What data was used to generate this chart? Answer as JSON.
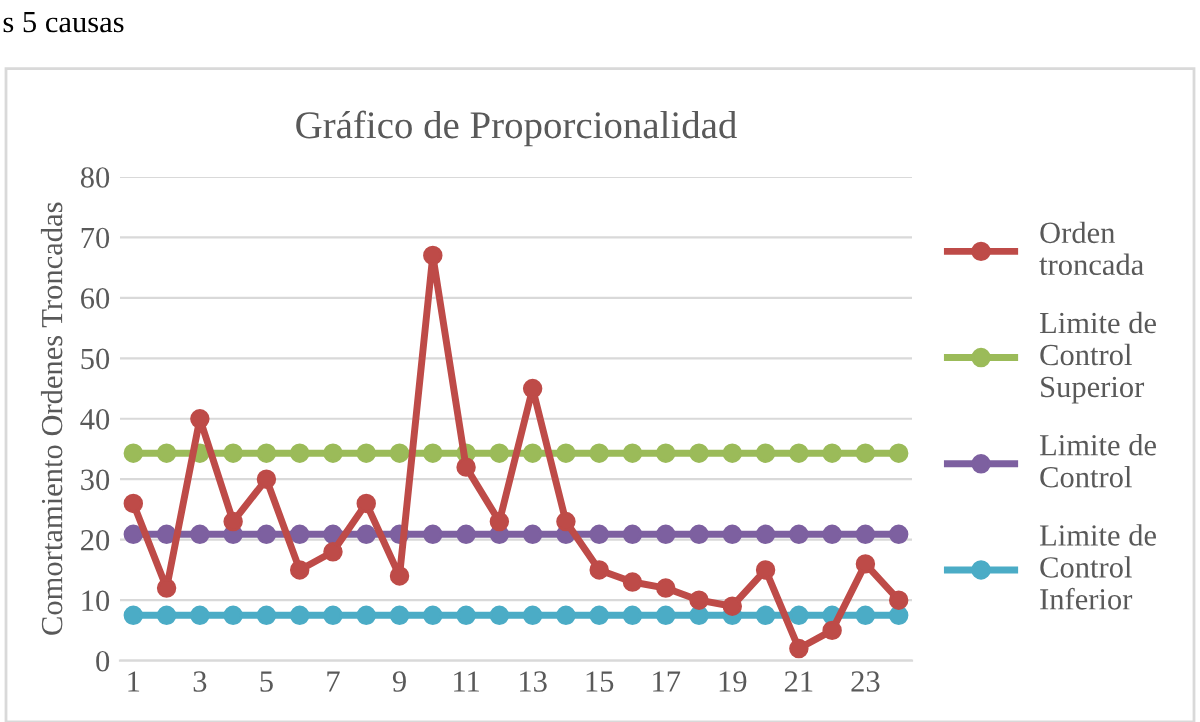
{
  "chart_data": {
    "type": "line",
    "title": "Gráfico de Proporcionalidad",
    "ylabel": "Comortamiento Ordenes Troncadas",
    "annotations": [
      "s 5 causas"
    ],
    "categories": [
      "1",
      null,
      "3",
      null,
      "5",
      null,
      "7",
      null,
      "9",
      null,
      "11",
      null,
      "13",
      null,
      "15",
      null,
      "17",
      null,
      "19",
      null,
      "21",
      null,
      "23",
      null
    ],
    "series": [
      {
        "name": "Orden troncada",
        "color": "#be4b48",
        "values": [
          26,
          12,
          40,
          23,
          30,
          15,
          18,
          26,
          14,
          67,
          32,
          23,
          45,
          23,
          15,
          13,
          12,
          10,
          9,
          15,
          2,
          5,
          16,
          10
        ]
      },
      {
        "name": "Limite de Control Superior",
        "color": "#9bbb59",
        "values": [
          34.3,
          34.3,
          34.3,
          34.3,
          34.3,
          34.3,
          34.3,
          34.3,
          34.3,
          34.3,
          34.3,
          34.3,
          34.3,
          34.3,
          34.3,
          34.3,
          34.3,
          34.3,
          34.3,
          34.3,
          34.3,
          34.3,
          34.3,
          34.3
        ]
      },
      {
        "name": "Limite de Control",
        "color": "#7d60a0",
        "values": [
          20.9,
          20.9,
          20.9,
          20.9,
          20.9,
          20.9,
          20.9,
          20.9,
          20.9,
          20.9,
          20.9,
          20.9,
          20.9,
          20.9,
          20.9,
          20.9,
          20.9,
          20.9,
          20.9,
          20.9,
          20.9,
          20.9,
          20.9,
          20.9
        ]
      },
      {
        "name": "Limite de Control Inferior",
        "color": "#4bacc6",
        "values": [
          7.5,
          7.5,
          7.5,
          7.5,
          7.5,
          7.5,
          7.5,
          7.5,
          7.5,
          7.5,
          7.5,
          7.5,
          7.5,
          7.5,
          7.5,
          7.5,
          7.5,
          7.5,
          7.5,
          7.5,
          7.5,
          7.5,
          7.5,
          7.5
        ]
      }
    ],
    "ylim": [
      0,
      80
    ],
    "yticks": [
      0,
      10,
      20,
      30,
      40,
      50,
      60,
      70,
      80
    ],
    "grid": "y",
    "legend": "right",
    "marker": "circle",
    "line_style": "solid"
  }
}
